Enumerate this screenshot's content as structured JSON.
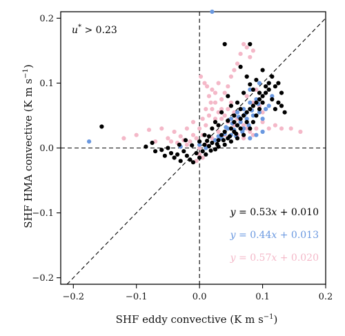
{
  "chart_data": {
    "type": "scatter",
    "title": "",
    "xlabel": "SHF eddy convective (K m s",
    "xlabel_sup": "−1",
    "xlabel_close": ")",
    "ylabel": "SHF HMA convective (K m s",
    "ylabel_sup": "−1",
    "ylabel_close": ")",
    "xlim": [
      -0.22,
      0.2
    ],
    "ylim": [
      -0.21,
      0.21
    ],
    "xticks": [
      -0.2,
      -0.1,
      0.0,
      0.1,
      0.2
    ],
    "xtick_labels": [
      "−0.2",
      "−0.1",
      "0.0",
      "0.1",
      "0.2"
    ],
    "yticks": [
      -0.2,
      -0.1,
      0.0,
      0.1,
      0.2
    ],
    "ytick_labels": [
      "−0.2",
      "−0.1",
      "0.0",
      "0.1",
      "0.2"
    ],
    "reference_lines": [
      "x = 0",
      "y = 0",
      "y = x"
    ],
    "annotation": {
      "u": "u",
      "sup": "*",
      "rest": " > 0.23",
      "color": "#3a9bd0"
    },
    "series": [
      {
        "color": "#000000",
        "equation": {
          "y": "y",
          "eq": " = 0.53",
          "x": "x",
          "rest": " + 0.010"
        },
        "fit": {
          "slope": 0.53,
          "intercept": 0.01
        },
        "points": [
          [
            -0.155,
            0.033
          ],
          [
            -0.085,
            0.002
          ],
          [
            -0.075,
            0.008
          ],
          [
            -0.07,
            -0.005
          ],
          [
            -0.06,
            -0.003
          ],
          [
            -0.055,
            -0.012
          ],
          [
            -0.05,
            0.0
          ],
          [
            -0.045,
            -0.008
          ],
          [
            -0.04,
            -0.015
          ],
          [
            -0.035,
            -0.01
          ],
          [
            -0.03,
            -0.02
          ],
          [
            -0.025,
            -0.005
          ],
          [
            -0.02,
            -0.012
          ],
          [
            -0.015,
            -0.018
          ],
          [
            -0.01,
            -0.022
          ],
          [
            -0.005,
            -0.008
          ],
          [
            0.0,
            -0.015
          ],
          [
            0.005,
            -0.005
          ],
          [
            0.01,
            -0.01
          ],
          [
            -0.032,
            0.005
          ],
          [
            -0.022,
            0.012
          ],
          [
            -0.012,
            0.004
          ],
          [
            0.0,
            0.01
          ],
          [
            0.008,
            0.005
          ],
          [
            0.015,
            0.003
          ],
          [
            0.02,
            0.008
          ],
          [
            0.025,
            -0.002
          ],
          [
            0.03,
            0.012
          ],
          [
            0.035,
            0.02
          ],
          [
            0.04,
            0.025
          ],
          [
            0.045,
            0.015
          ],
          [
            0.05,
            0.03
          ],
          [
            0.055,
            0.04
          ],
          [
            0.06,
            0.035
          ],
          [
            0.065,
            0.045
          ],
          [
            0.07,
            0.05
          ],
          [
            0.075,
            0.055
          ],
          [
            0.08,
            0.06
          ],
          [
            0.085,
            0.065
          ],
          [
            0.09,
            0.07
          ],
          [
            0.095,
            0.075
          ],
          [
            0.1,
            0.08
          ],
          [
            0.105,
            0.085
          ],
          [
            0.11,
            0.09
          ],
          [
            0.115,
            0.075
          ],
          [
            0.12,
            0.06
          ],
          [
            0.125,
            0.07
          ],
          [
            0.13,
            0.065
          ],
          [
            0.135,
            0.055
          ],
          [
            0.09,
            0.05
          ],
          [
            0.085,
            0.04
          ],
          [
            0.08,
            0.03
          ],
          [
            0.07,
            0.02
          ],
          [
            0.06,
            0.015
          ],
          [
            0.05,
            0.01
          ],
          [
            0.04,
            0.005
          ],
          [
            0.03,
            0.002
          ],
          [
            0.055,
            0.025
          ],
          [
            0.065,
            0.03
          ],
          [
            0.075,
            0.04
          ],
          [
            0.095,
            0.06
          ],
          [
            0.1,
            0.07
          ],
          [
            0.11,
            0.1
          ],
          [
            0.12,
            0.095
          ],
          [
            0.09,
            0.105
          ],
          [
            0.08,
            0.098
          ],
          [
            0.075,
            0.11
          ],
          [
            0.065,
            0.125
          ],
          [
            0.04,
            0.16
          ],
          [
            0.08,
            0.16
          ],
          [
            0.1,
            0.12
          ],
          [
            0.045,
            0.08
          ],
          [
            0.05,
            0.065
          ],
          [
            0.06,
            0.07
          ],
          [
            0.035,
            0.055
          ],
          [
            0.025,
            0.04
          ],
          [
            0.02,
            0.03
          ],
          [
            0.015,
            0.018
          ],
          [
            0.07,
            0.085
          ],
          [
            0.085,
            0.09
          ],
          [
            0.105,
            0.095
          ],
          [
            0.115,
            0.11
          ],
          [
            0.125,
            0.1
          ],
          [
            0.13,
            0.085
          ],
          [
            0.095,
            0.085
          ],
          [
            0.065,
            0.06
          ],
          [
            0.055,
            0.05
          ],
          [
            0.045,
            0.042
          ],
          [
            0.03,
            0.035
          ],
          [
            0.008,
            0.02
          ],
          [
            0.012,
            0.011
          ],
          [
            0.018,
            -0.004
          ],
          [
            0.028,
            0.006
          ],
          [
            0.038,
            0.012
          ],
          [
            0.048,
            0.018
          ],
          [
            0.058,
            0.022
          ]
        ]
      },
      {
        "color": "#6a98e0",
        "equation": {
          "y": "y",
          "eq": " = 0.44",
          "x": "x",
          "rest": " + 0.013"
        },
        "fit": {
          "slope": 0.44,
          "intercept": 0.013
        },
        "points": [
          [
            -0.175,
            0.01
          ],
          [
            0.02,
            0.21
          ],
          [
            0.09,
            0.02
          ],
          [
            0.1,
            0.025
          ],
          [
            0.08,
            0.015
          ],
          [
            0.07,
            0.03
          ],
          [
            0.06,
            0.035
          ],
          [
            0.055,
            0.028
          ],
          [
            0.05,
            0.02
          ],
          [
            0.045,
            0.03
          ],
          [
            0.04,
            0.022
          ],
          [
            0.035,
            0.015
          ],
          [
            0.03,
            0.018
          ],
          [
            0.025,
            0.012
          ],
          [
            0.065,
            0.04
          ],
          [
            0.075,
            0.045
          ],
          [
            0.085,
            0.05
          ],
          [
            0.095,
            0.055
          ],
          [
            0.105,
            0.06
          ],
          [
            0.11,
            0.065
          ],
          [
            0.09,
            0.075
          ],
          [
            0.08,
            0.07
          ],
          [
            0.07,
            0.06
          ],
          [
            0.06,
            0.055
          ],
          [
            0.05,
            0.045
          ],
          [
            0.11,
            0.1
          ],
          [
            0.095,
            0.1
          ],
          [
            0.08,
            0.09
          ],
          [
            0.1,
            0.045
          ],
          [
            0.115,
            0.08
          ],
          [
            -0.03,
            0.002
          ],
          [
            0.0,
            0.005
          ],
          [
            0.01,
            0.0
          ],
          [
            0.072,
            0.052
          ],
          [
            0.062,
            0.048
          ],
          [
            0.052,
            0.038
          ],
          [
            0.042,
            0.032
          ],
          [
            0.083,
            0.058
          ],
          [
            0.093,
            0.068
          ],
          [
            0.078,
            0.035
          ],
          [
            0.068,
            0.025
          ],
          [
            0.058,
            0.018
          ]
        ]
      },
      {
        "color": "#f4b8c8",
        "equation": {
          "y": "y",
          "eq": " = 0.57",
          "x": "x",
          "rest": " + 0.020"
        },
        "fit": {
          "slope": 0.57,
          "intercept": 0.02
        },
        "points": [
          [
            0.0,
            0.0
          ],
          [
            0.005,
            0.02
          ],
          [
            0.01,
            0.035
          ],
          [
            0.015,
            0.05
          ],
          [
            0.02,
            0.06
          ],
          [
            0.025,
            0.07
          ],
          [
            0.03,
            0.055
          ],
          [
            0.035,
            0.045
          ],
          [
            0.04,
            0.05
          ],
          [
            0.045,
            0.06
          ],
          [
            0.05,
            0.07
          ],
          [
            0.055,
            0.055
          ],
          [
            0.06,
            0.045
          ],
          [
            0.065,
            0.04
          ],
          [
            0.07,
            0.035
          ],
          [
            0.075,
            0.03
          ],
          [
            0.08,
            0.025
          ],
          [
            0.085,
            0.02
          ],
          [
            0.09,
            0.03
          ],
          [
            0.0,
            0.03
          ],
          [
            -0.005,
            0.015
          ],
          [
            -0.01,
            0.02
          ],
          [
            -0.015,
            0.01
          ],
          [
            -0.02,
            0.005
          ],
          [
            -0.025,
            0.012
          ],
          [
            -0.03,
            0.018
          ],
          [
            -0.035,
            0.008
          ],
          [
            -0.05,
            0.015
          ],
          [
            -0.07,
            0.01
          ],
          [
            -0.1,
            0.02
          ],
          [
            -0.12,
            0.015
          ],
          [
            -0.08,
            0.028
          ],
          [
            -0.06,
            0.03
          ],
          [
            0.005,
            0.045
          ],
          [
            0.01,
            0.06
          ],
          [
            0.015,
            0.08
          ],
          [
            0.02,
            0.09
          ],
          [
            0.025,
            0.085
          ],
          [
            0.03,
            0.1
          ],
          [
            0.035,
            0.075
          ],
          [
            0.04,
            0.085
          ],
          [
            0.045,
            0.095
          ],
          [
            0.05,
            0.11
          ],
          [
            0.055,
            0.12
          ],
          [
            0.06,
            0.13
          ],
          [
            0.065,
            0.145
          ],
          [
            0.07,
            0.16
          ],
          [
            0.075,
            0.155
          ],
          [
            0.085,
            0.15
          ],
          [
            0.08,
            0.14
          ],
          [
            0.002,
            0.11
          ],
          [
            0.008,
            0.1
          ],
          [
            0.012,
            0.095
          ],
          [
            0.018,
            0.07
          ],
          [
            0.1,
            0.04
          ],
          [
            0.11,
            0.03
          ],
          [
            0.12,
            0.035
          ],
          [
            0.13,
            0.03
          ],
          [
            0.145,
            0.03
          ],
          [
            0.16,
            0.025
          ],
          [
            0.0,
            -0.01
          ],
          [
            0.005,
            -0.015
          ],
          [
            -0.005,
            -0.02
          ],
          [
            0.01,
            0.005
          ],
          [
            0.02,
            0.015
          ],
          [
            0.03,
            0.025
          ],
          [
            0.04,
            0.02
          ],
          [
            0.05,
            0.03
          ],
          [
            0.06,
            0.02
          ],
          [
            0.07,
            0.015
          ],
          [
            -0.01,
            0.04
          ],
          [
            -0.02,
            0.03
          ],
          [
            0.025,
            0.045
          ],
          [
            0.035,
            0.06
          ],
          [
            0.045,
            0.04
          ],
          [
            0.055,
            0.035
          ],
          [
            0.065,
            0.06
          ],
          [
            0.075,
            0.08
          ],
          [
            0.085,
            0.07
          ],
          [
            0.095,
            0.065
          ],
          [
            0.09,
            0.09
          ],
          [
            0.1,
            0.055
          ],
          [
            -0.04,
            0.025
          ],
          [
            -0.045,
            0.01
          ]
        ]
      }
    ]
  }
}
